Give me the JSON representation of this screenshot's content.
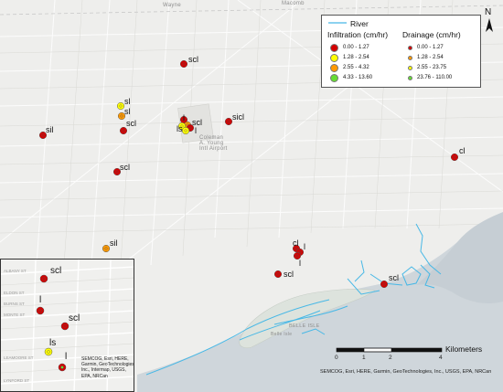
{
  "legend": {
    "river_label": "River",
    "infiltration_title": "Infiltration (cm/hr)",
    "drainage_title": "Drainage (cm/hr)",
    "infiltration_classes": [
      {
        "label": "0.00 - 1.27",
        "color": "#d40000"
      },
      {
        "label": "1.28 - 2.54",
        "color": "#ffff00"
      },
      {
        "label": "2.55 - 4.32",
        "color": "#ff9900"
      },
      {
        "label": "4.33 - 13.60",
        "color": "#66dd33"
      }
    ],
    "drainage_classes": [
      {
        "label": "0.00 - 1.27",
        "color": "#d40000"
      },
      {
        "label": "1.28 - 2.54",
        "color": "#ff9900"
      },
      {
        "label": "2.55 - 23.75",
        "color": "#ffff00"
      },
      {
        "label": "23.76 - 110.00",
        "color": "#66dd33"
      }
    ],
    "river_color": "#47b8e6"
  },
  "north_arrow": {
    "letter": "N"
  },
  "scale_bar": {
    "ticks": [
      "0",
      "1",
      "2",
      "4"
    ],
    "unit": "Kilometers"
  },
  "credits": {
    "main": "SEMCOG, Esri, HERE, Garmin, GeoTechnologies, Inc., USGS, EPA, NRCan",
    "inset": "SEMCOG, Esri, HERE, Garmin, GeoTechnologies, Inc., Intermap, USGS, EPA, NRCan"
  },
  "places": {
    "airport": [
      "Coleman",
      "A. Young",
      "Intl Airport"
    ],
    "belle_isle": "BELLE ISLE",
    "belle_isle_park": "Belle Isle",
    "top_road_1": "Wayne",
    "top_road_2": "Macomb"
  },
  "site_labels": {
    "s1": "scl",
    "s2": "sl",
    "s3": "sl",
    "s4": "scl",
    "s5": "sil",
    "s6": "scl",
    "s7": "sicl",
    "s8": "scl",
    "s9": "sil",
    "s10": "cl",
    "s11": "cl",
    "s12": "l",
    "s13": "l",
    "s14": "scl",
    "s15": "scl",
    "s16": "l",
    "s17": "l",
    "s18": "ls",
    "s19": "scl"
  },
  "inset": {
    "labels": {
      "a": "scl",
      "b": "l",
      "c": "scl",
      "d": "ls",
      "e": "l"
    },
    "streets": [
      "ALBANY ST",
      "ELDON ST",
      "BURNS ST",
      "MONTE ST",
      "LEAMOORE ST",
      "LYNFORD ST"
    ]
  }
}
